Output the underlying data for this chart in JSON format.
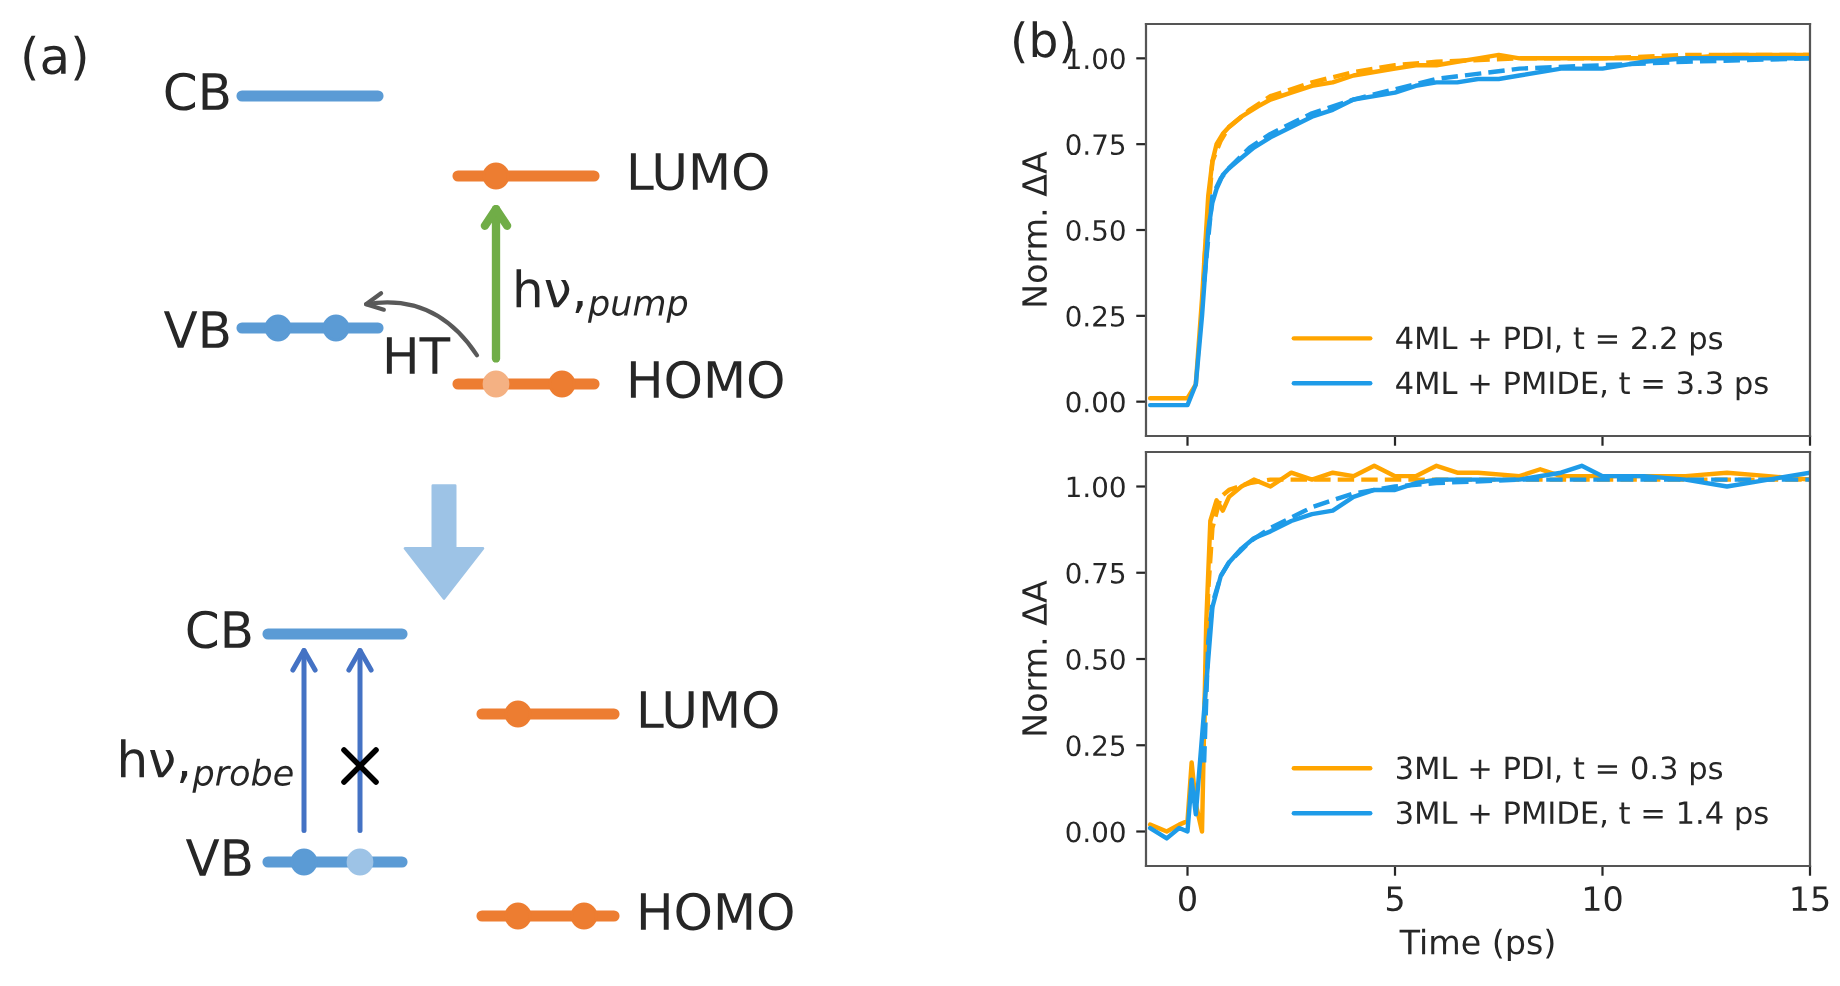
{
  "chart_data": [
    {
      "type": "other",
      "title": "(a)",
      "annotations": [
        "CB",
        "LUMO",
        "VB",
        "HT",
        "hν,$_{pump}$",
        "HOMO",
        "CB",
        "LUMO",
        "hν,$_{probe}$",
        "VB",
        "HOMO"
      ]
    },
    {
      "type": "line",
      "title": "(b)",
      "ylabel": "Norm. ΔA",
      "xlim": [
        -1,
        15
      ],
      "ylim": [
        -0.1,
        1.1
      ],
      "xticks": [
        0,
        5,
        10,
        15
      ],
      "yticks": [
        {
          "value": 0,
          "label": "0.00"
        },
        {
          "value": 0.25,
          "label": "0.25"
        },
        {
          "value": 0.5,
          "label": "0.50"
        },
        {
          "value": 0.75,
          "label": "0.75"
        },
        {
          "value": 1,
          "label": "1.00"
        }
      ],
      "tick_labels": "y",
      "legend": "bottom right",
      "series": [
        {
          "name": "4ML + PDI, t = 2.2 ps",
          "color": "#ffa500",
          "line_style": "solid",
          "x": [
            -0.9,
            -0.5,
            0,
            0.2,
            0.35,
            0.5,
            0.6,
            0.7,
            0.85,
            1.0,
            1.3,
            1.7,
            2.0,
            2.5,
            3.0,
            3.5,
            4.0,
            4.5,
            5.0,
            5.5,
            6.0,
            6.5,
            7.0,
            7.5,
            8.0,
            9.0,
            10.0,
            11.0,
            12.0,
            13.0,
            14.0,
            15.0
          ],
          "values": [
            0.01,
            0.01,
            0.01,
            0.05,
            0.3,
            0.6,
            0.7,
            0.75,
            0.78,
            0.8,
            0.83,
            0.86,
            0.88,
            0.9,
            0.92,
            0.93,
            0.95,
            0.96,
            0.97,
            0.98,
            0.98,
            0.99,
            1.0,
            1.01,
            1.0,
            1.0,
            1.0,
            1.0,
            1.0,
            1.01,
            1.01,
            1.01
          ]
        },
        {
          "color": "#ffa500",
          "line_style": "dashed",
          "x": [
            0.4,
            0.6,
            0.8,
            1.0,
            1.5,
            2.0,
            3.0,
            4.0,
            5.0,
            6.0,
            8.0,
            10.0,
            12.0,
            15.0
          ],
          "values": [
            0.4,
            0.7,
            0.76,
            0.8,
            0.85,
            0.89,
            0.93,
            0.96,
            0.98,
            0.99,
            1.0,
            1.0,
            1.01,
            1.01
          ]
        },
        {
          "name": "4ML + PMIDE, t = 3.3 ps",
          "color": "#1e9be8",
          "line_style": "solid",
          "x": [
            -0.9,
            -0.5,
            0,
            0.2,
            0.35,
            0.5,
            0.6,
            0.7,
            0.85,
            1.0,
            1.2,
            1.6,
            2.0,
            2.5,
            3.0,
            3.5,
            4.0,
            4.5,
            5.0,
            5.5,
            6.0,
            6.5,
            7.0,
            7.5,
            8.0,
            9.0,
            10.0,
            11.0,
            12.0,
            13.0,
            14.0,
            15.0
          ],
          "values": [
            -0.01,
            -0.01,
            -0.01,
            0.05,
            0.25,
            0.5,
            0.58,
            0.62,
            0.66,
            0.68,
            0.7,
            0.74,
            0.77,
            0.8,
            0.83,
            0.85,
            0.88,
            0.89,
            0.9,
            0.92,
            0.93,
            0.93,
            0.94,
            0.94,
            0.95,
            0.97,
            0.97,
            0.99,
            1.0,
            1.0,
            1.0,
            1.0
          ]
        },
        {
          "color": "#1e9be8",
          "line_style": "dashed",
          "x": [
            0.4,
            0.6,
            0.8,
            1.0,
            1.5,
            2.0,
            3.0,
            4.0,
            5.0,
            6.0,
            8.0,
            10.0,
            12.0,
            15.0
          ],
          "values": [
            0.35,
            0.6,
            0.65,
            0.68,
            0.74,
            0.78,
            0.84,
            0.88,
            0.91,
            0.94,
            0.97,
            0.98,
            0.99,
            1.0
          ]
        }
      ]
    },
    {
      "type": "line",
      "xlabel": "Time (ps)",
      "ylabel": "Norm. ΔA",
      "xlim": [
        -1,
        15
      ],
      "ylim": [
        -0.1,
        1.1
      ],
      "xticks": [
        0,
        5,
        10,
        15
      ],
      "yticks": [
        {
          "value": 0,
          "label": "0.00"
        },
        {
          "value": 0.25,
          "label": "0.25"
        },
        {
          "value": 0.5,
          "label": "0.50"
        },
        {
          "value": 0.75,
          "label": "0.75"
        },
        {
          "value": 1,
          "label": "1.00"
        }
      ],
      "legend": "bottom right",
      "series": [
        {
          "name": "3ML + PDI, t = 0.3 ps",
          "color": "#ffa500",
          "line_style": "solid",
          "x": [
            -0.9,
            -0.5,
            -0.2,
            0,
            0.1,
            0.2,
            0.35,
            0.45,
            0.55,
            0.7,
            0.85,
            1.0,
            1.3,
            1.6,
            2.0,
            2.5,
            3.0,
            3.5,
            4.0,
            4.5,
            5.0,
            5.5,
            6.0,
            6.5,
            7.0,
            8.0,
            8.5,
            9.0,
            10.0,
            11.0,
            12.0,
            13.0,
            14.0,
            15.0
          ],
          "values": [
            0.02,
            0.0,
            0.02,
            0.03,
            0.2,
            0.08,
            0.0,
            0.6,
            0.9,
            0.96,
            0.93,
            0.97,
            1.0,
            1.02,
            1.0,
            1.04,
            1.02,
            1.04,
            1.03,
            1.06,
            1.03,
            1.03,
            1.06,
            1.04,
            1.04,
            1.03,
            1.05,
            1.03,
            1.03,
            1.03,
            1.03,
            1.04,
            1.03,
            1.02
          ]
        },
        {
          "color": "#ffa500",
          "line_style": "dashed",
          "x": [
            0.4,
            0.5,
            0.6,
            0.8,
            1.0,
            1.5,
            2.0,
            3.0,
            5.0,
            10.0,
            15.0
          ],
          "values": [
            0.3,
            0.7,
            0.88,
            0.97,
            0.99,
            1.01,
            1.02,
            1.02,
            1.02,
            1.02,
            1.02
          ]
        },
        {
          "name": "3ML + PMIDE, t = 1.4 ps",
          "color": "#1e9be8",
          "line_style": "solid",
          "x": [
            -0.9,
            -0.5,
            -0.2,
            0,
            0.1,
            0.2,
            0.3,
            0.4,
            0.5,
            0.6,
            0.8,
            1.0,
            1.3,
            1.6,
            2.0,
            2.5,
            3.0,
            3.5,
            4.0,
            4.5,
            5.0,
            5.5,
            6.0,
            7.0,
            8.0,
            9.0,
            9.5,
            10.0,
            11.0,
            12.0,
            13.0,
            14.0,
            15.0
          ],
          "values": [
            0.01,
            -0.02,
            0.01,
            0.0,
            0.15,
            0.05,
            null,
            null,
            0.5,
            0.65,
            0.74,
            0.78,
            0.82,
            0.85,
            0.87,
            0.9,
            0.92,
            0.93,
            0.97,
            0.99,
            0.99,
            1.01,
            1.02,
            1.02,
            1.02,
            1.04,
            1.06,
            1.03,
            1.03,
            1.02,
            1.0,
            1.02,
            1.04
          ]
        },
        {
          "color": "#1e9be8",
          "line_style": "dashed",
          "x": [
            0.4,
            0.5,
            0.6,
            0.8,
            1.0,
            1.5,
            2.0,
            3.0,
            4.0,
            5.0,
            6.0,
            8.0,
            10.0,
            15.0
          ],
          "values": [
            0.2,
            0.55,
            0.66,
            0.74,
            0.78,
            0.84,
            0.88,
            0.94,
            0.98,
            1.0,
            1.01,
            1.02,
            1.02,
            1.02
          ]
        }
      ]
    }
  ]
}
